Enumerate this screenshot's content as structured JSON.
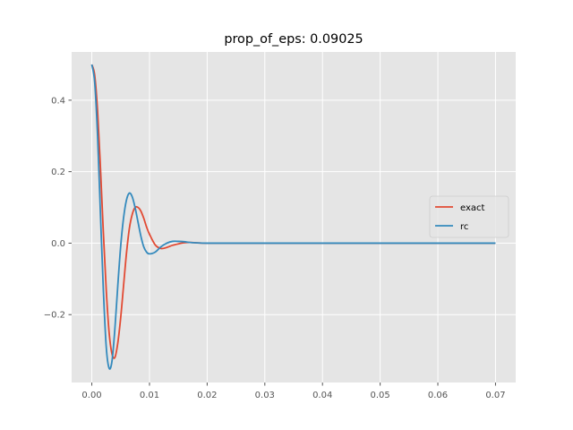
{
  "chart_data": {
    "type": "line",
    "title": "prop_of_eps: 0.09025",
    "xlabel": "",
    "ylabel": "",
    "xlim": [
      -0.0035,
      0.0735
    ],
    "ylim": [
      -0.39,
      0.535
    ],
    "xticks": [
      0.0,
      0.01,
      0.02,
      0.03,
      0.04,
      0.05,
      0.06,
      0.07
    ],
    "xtick_labels": [
      "0.00",
      "0.01",
      "0.02",
      "0.03",
      "0.04",
      "0.05",
      "0.06",
      "0.07"
    ],
    "yticks": [
      -0.2,
      0.0,
      0.2,
      0.4
    ],
    "ytick_labels": [
      "−0.2",
      "0.0",
      "0.2",
      "0.4"
    ],
    "grid": true,
    "legend_position": "center-right",
    "series": [
      {
        "name": "exact",
        "color": "#E24A33",
        "x": [
          0.0,
          0.0005,
          0.001,
          0.0015,
          0.002,
          0.0025,
          0.003,
          0.0035,
          0.004,
          0.0045,
          0.005,
          0.0055,
          0.006,
          0.0065,
          0.007,
          0.0075,
          0.008,
          0.0085,
          0.009,
          0.0095,
          0.01,
          0.011,
          0.012,
          0.013,
          0.014,
          0.015,
          0.016,
          0.017,
          0.018,
          0.02,
          0.025,
          0.03,
          0.04,
          0.05,
          0.06,
          0.07
        ],
        "y": [
          0.5,
          0.47,
          0.37,
          0.21,
          0.03,
          -0.13,
          -0.25,
          -0.31,
          -0.32,
          -0.28,
          -0.21,
          -0.12,
          -0.03,
          0.04,
          0.08,
          0.1,
          0.1,
          0.09,
          0.07,
          0.045,
          0.025,
          -0.005,
          -0.015,
          -0.012,
          -0.006,
          -0.002,
          0.001,
          0.002,
          0.001,
          0.0,
          0.0,
          0.0,
          0.0,
          0.0,
          0.0,
          0.0
        ]
      },
      {
        "name": "rc",
        "color": "#348ABD",
        "x": [
          0.0,
          0.0005,
          0.001,
          0.0015,
          0.002,
          0.0025,
          0.003,
          0.0035,
          0.004,
          0.0045,
          0.005,
          0.0055,
          0.006,
          0.0065,
          0.007,
          0.0075,
          0.008,
          0.0085,
          0.009,
          0.0095,
          0.01,
          0.011,
          0.012,
          0.013,
          0.014,
          0.015,
          0.016,
          0.017,
          0.018,
          0.02,
          0.025,
          0.03,
          0.04,
          0.05,
          0.06,
          0.07
        ],
        "y": [
          0.5,
          0.45,
          0.3,
          0.08,
          -0.13,
          -0.29,
          -0.35,
          -0.33,
          -0.24,
          -0.12,
          -0.01,
          0.07,
          0.12,
          0.14,
          0.13,
          0.1,
          0.06,
          0.02,
          -0.01,
          -0.025,
          -0.03,
          -0.025,
          -0.01,
          0.0,
          0.005,
          0.005,
          0.004,
          0.002,
          0.001,
          0.0,
          0.0,
          0.0,
          0.0,
          0.0,
          0.0,
          0.0
        ]
      }
    ]
  }
}
